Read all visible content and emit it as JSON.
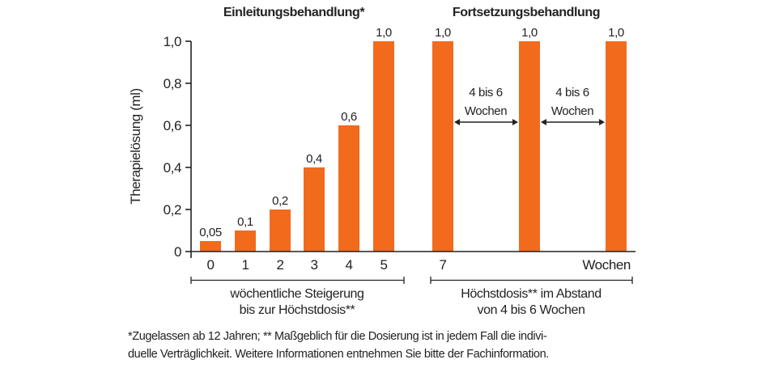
{
  "chart_data": {
    "type": "bar",
    "titles": [
      "Einleitungsbehandlung*",
      "Fortsetzungsbehandlung"
    ],
    "ylabel": "Therapielösung (ml)",
    "xlabel": "Wochen",
    "ylim": [
      0,
      1.0
    ],
    "yticks": [
      "0",
      "0,2",
      "0,4",
      "0,6",
      "0,8",
      "1,0"
    ],
    "ytick_values": [
      0,
      0.2,
      0.4,
      0.6,
      0.8,
      1.0
    ],
    "bars": [
      {
        "week": "0",
        "value": 0.05,
        "label": "0,05"
      },
      {
        "week": "1",
        "value": 0.1,
        "label": "0,1"
      },
      {
        "week": "2",
        "value": 0.2,
        "label": "0,2"
      },
      {
        "week": "3",
        "value": 0.4,
        "label": "0,4"
      },
      {
        "week": "4",
        "value": 0.6,
        "label": "0,6"
      },
      {
        "week": "5",
        "value": 1.0,
        "label": "1,0"
      },
      {
        "week": "7",
        "value": 1.0,
        "label": "1,0"
      },
      {
        "week": "",
        "value": 1.0,
        "label": "1,0"
      },
      {
        "week": "",
        "value": 1.0,
        "label": "1,0"
      }
    ],
    "bar_color": "#F26B1D",
    "intervals": [
      {
        "line1": "4 bis 6",
        "line2": "Wochen"
      },
      {
        "line1": "4 bis 6",
        "line2": "Wochen"
      }
    ],
    "brackets": [
      {
        "line1": "wöchentliche Steigerung",
        "line2": "bis zur Höchstdosis**"
      },
      {
        "line1": "Höchstdosis** im Abstand",
        "line2": "von 4 bis 6 Wochen"
      }
    ]
  },
  "footnote": {
    "line1": "*Zugelassen ab 12 Jahren; ** Maßgeblich für die Dosierung ist in jedem Fall die indivi-",
    "line2": "duelle Verträglichkeit. Weitere Informationen entnehmen Sie bitte der Fachinformation."
  }
}
